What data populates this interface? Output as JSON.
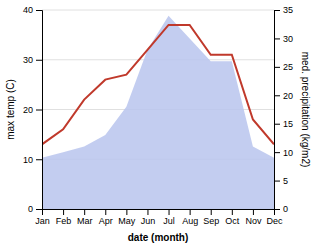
{
  "chart_data": {
    "type": "line",
    "xlabel": "date (month)",
    "ylabel": "max temp (C)",
    "y2label": "med. precipitation (kg/m2)",
    "categories": [
      "Jan",
      "Feb",
      "Mar",
      "Apr",
      "May",
      "Jun",
      "Jul",
      "Aug",
      "Sep",
      "Oct",
      "Nov",
      "Dec"
    ],
    "series": [
      {
        "type": "area",
        "axis": "y2",
        "color": "#b8c4ed",
        "values": [
          9,
          10,
          11,
          13,
          18,
          28,
          34,
          30,
          26,
          26,
          11,
          9
        ]
      },
      {
        "type": "line",
        "color": "#c0392b",
        "values": [
          13,
          16,
          22,
          26,
          27,
          32,
          37,
          37,
          31,
          31,
          18,
          13
        ]
      }
    ],
    "ylim": [
      0,
      40
    ],
    "yticks": [
      0,
      10,
      20,
      30,
      40
    ],
    "y2lim": [
      0,
      35
    ],
    "y2ticks": [
      0,
      5,
      10,
      15,
      20,
      25,
      30,
      35
    ],
    "grid": true
  }
}
